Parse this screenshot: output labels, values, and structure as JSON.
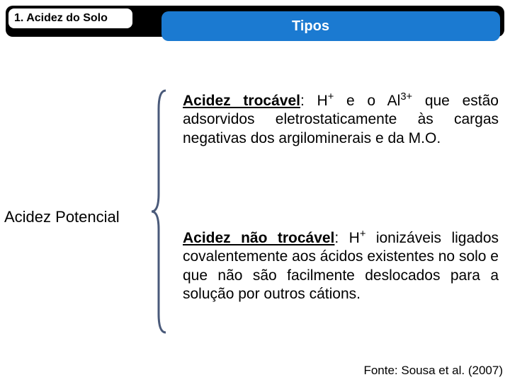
{
  "header": {
    "section_label": "1. Acidez do Solo",
    "subtitle": "Tipos",
    "black_bg": "#000000",
    "white_bg": "#ffffff",
    "blue_bg": "#1b7ad1"
  },
  "side_label": "Acidez Potencial",
  "blocks": {
    "trocavel": {
      "term": "Acidez trocável",
      "rest_html": ": H<sup>+</sup> e o Al<sup>3+</sup> que estão adsorvidos eletrostaticamente às cargas negativas dos argilominerais e da M.O."
    },
    "nao_trocavel": {
      "term": "Acidez não trocável",
      "rest_html": ": H<sup>+</sup>  ionizáveis ligados covalentemente aos ácidos existentes no solo e que não são facilmente deslocados para a solução por outros cátions."
    }
  },
  "source": "Fonte: Sousa et al. (2007)",
  "bracket_color": "#4a5a7a",
  "text_color": "#000000"
}
